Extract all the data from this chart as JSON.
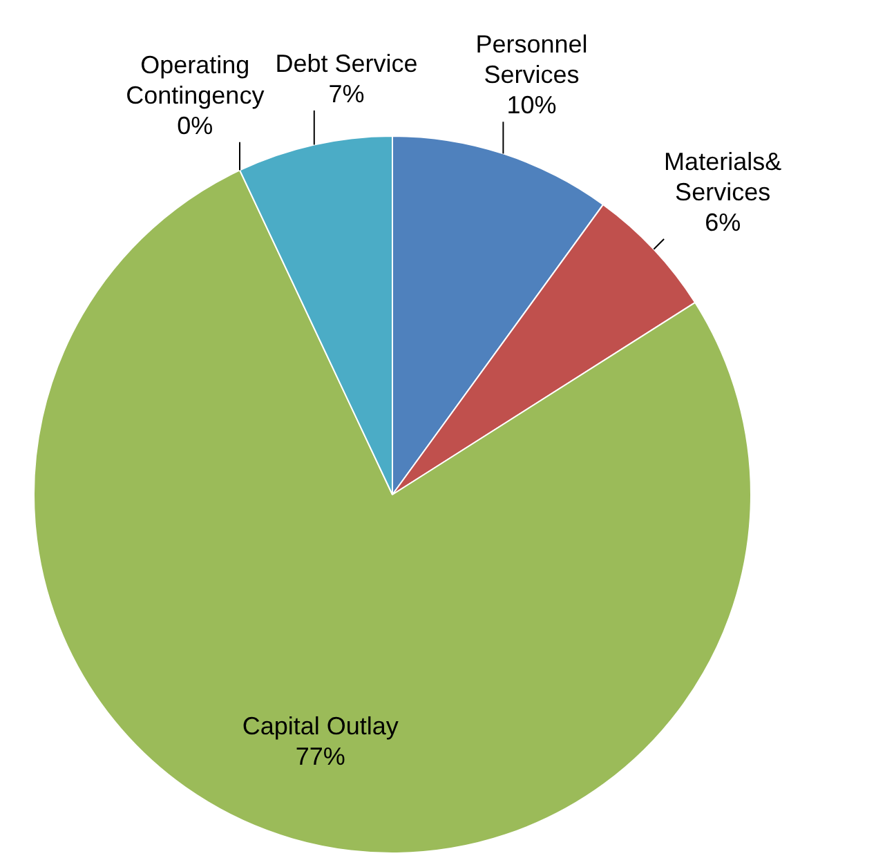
{
  "chart_data": {
    "type": "pie",
    "categories": [
      "Personnel Services",
      "Materials& Services",
      "Capital Outlay",
      "Operating Contingency",
      "Debt Service"
    ],
    "values": [
      10,
      6,
      77,
      0,
      7
    ],
    "value_labels": [
      "10%",
      "6%",
      "77%",
      "0%",
      "7%"
    ],
    "colors": [
      "#4f81bd",
      "#c0504d",
      "#9bbb59",
      "#8064a2",
      "#4bacc6"
    ],
    "legend": false
  }
}
